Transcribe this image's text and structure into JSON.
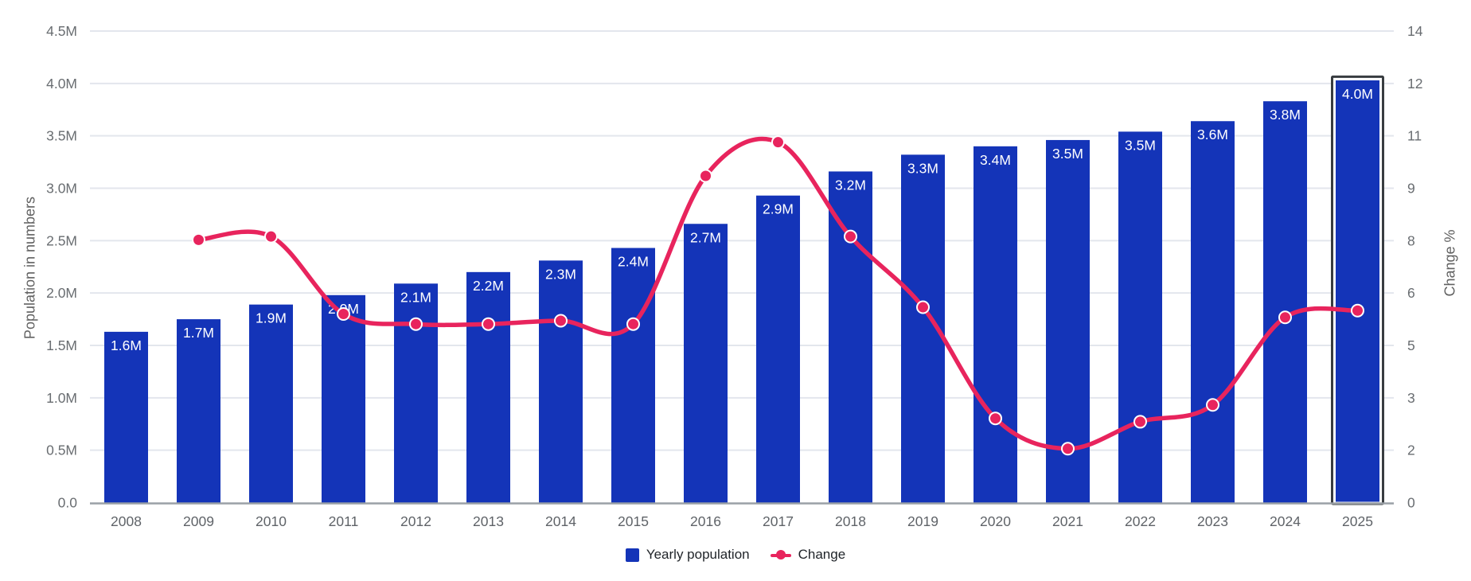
{
  "chart_data": {
    "type": "bar",
    "subtype": "combo-bar-line",
    "categories": [
      "2008",
      "2009",
      "2010",
      "2011",
      "2012",
      "2013",
      "2014",
      "2015",
      "2016",
      "2017",
      "2018",
      "2019",
      "2020",
      "2021",
      "2022",
      "2023",
      "2024",
      "2025"
    ],
    "series": [
      {
        "name": "Yearly population",
        "type": "bar",
        "axis": "left",
        "unit": "millions",
        "values": [
          1.63,
          1.75,
          1.89,
          1.98,
          2.09,
          2.2,
          2.31,
          2.43,
          2.66,
          2.93,
          3.16,
          3.32,
          3.4,
          3.46,
          3.54,
          3.64,
          3.83,
          4.03
        ],
        "bar_labels": [
          "1.6M",
          "1.7M",
          "1.9M",
          "2.0M",
          "2.1M",
          "2.2M",
          "2.3M",
          "2.4M",
          "2.7M",
          "2.9M",
          "3.2M",
          "3.3M",
          "3.4M",
          "3.5M",
          "3.5M",
          "3.6M",
          "3.8M",
          "4.0M"
        ]
      },
      {
        "name": "Change",
        "type": "line",
        "axis": "right",
        "unit": "percent",
        "values": [
          null,
          7.8,
          7.9,
          5.6,
          5.3,
          5.3,
          5.4,
          5.3,
          9.7,
          10.7,
          7.9,
          5.8,
          2.5,
          1.6,
          2.4,
          2.9,
          5.5,
          5.7
        ]
      }
    ],
    "left_axis": {
      "title": "Population in numbers",
      "range": [
        0,
        4.5
      ],
      "tick_labels_bottom_to_top": [
        "0.0",
        "0.5M",
        "1.0M",
        "1.5M",
        "2.0M",
        "2.5M",
        "3.0M",
        "3.5M",
        "4.0M",
        "4.5M"
      ]
    },
    "right_axis": {
      "title": "Change %",
      "range": [
        0,
        14
      ],
      "tick_labels_bottom_to_top": [
        "0",
        "2",
        "3",
        "5",
        "6",
        "8",
        "9",
        "11",
        "12",
        "14"
      ]
    },
    "legend": {
      "position": "bottom",
      "items": [
        {
          "label": "Yearly population",
          "marker": "square",
          "color": "#1434b8"
        },
        {
          "label": "Change",
          "marker": "line-dot",
          "color": "#e8245d"
        }
      ]
    },
    "highlighted_category": "2025",
    "grid": true,
    "colors": {
      "bar": "#1434b8",
      "bar_label_text": "#ffffff",
      "line": "#e8245d",
      "point_stroke": "#ffffff",
      "gridline": "#e3e6ed",
      "axis_baseline": "#9aa0a6",
      "tick_text": "#696d71",
      "category_text": "#5f6368",
      "selection_border": "#383c40"
    }
  }
}
